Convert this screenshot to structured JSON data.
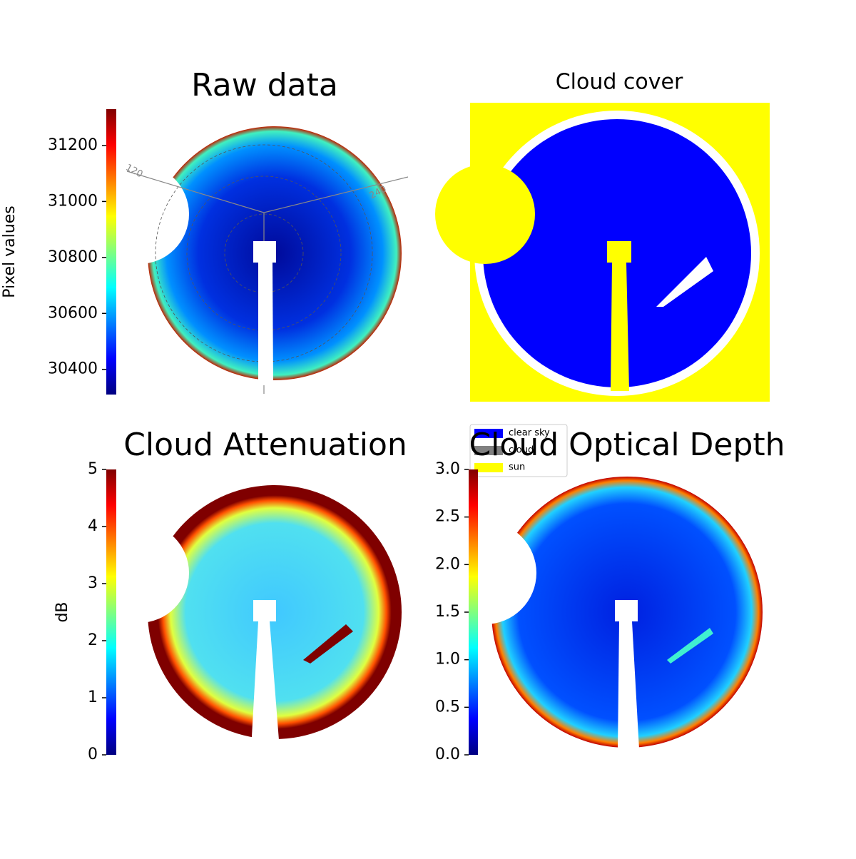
{
  "chart_data": [
    {
      "type": "heatmap",
      "title": "Raw data",
      "colorbar_label": "Pixel values",
      "clim": [
        30310,
        31330
      ],
      "cticks": [
        30400,
        30600,
        30800,
        31000,
        31200
      ],
      "annotations": [
        "120",
        "240"
      ]
    },
    {
      "type": "classmap",
      "title": "Cloud cover",
      "legend_entries": [
        {
          "name": "clear sky",
          "color": "#0000ff"
        },
        {
          "name": "cloud",
          "color": "#808080"
        },
        {
          "name": "sun",
          "color": "#ffff00"
        }
      ]
    },
    {
      "type": "heatmap",
      "title": "Cloud Attenuation",
      "colorbar_label": "dB",
      "clim": [
        0,
        5
      ],
      "cticks": [
        0,
        1,
        2,
        3,
        4,
        5
      ]
    },
    {
      "type": "heatmap",
      "title": "Cloud Optical Depth",
      "clim": [
        0,
        3
      ],
      "cticks": [
        {
          "value": 0,
          "label": "0.0"
        },
        0.5,
        {
          "value": 1,
          "label": "1.0"
        },
        1.5,
        {
          "value": 2,
          "label": "2.0"
        },
        2.5,
        {
          "value": 3,
          "label": "3.0"
        }
      ]
    }
  ]
}
